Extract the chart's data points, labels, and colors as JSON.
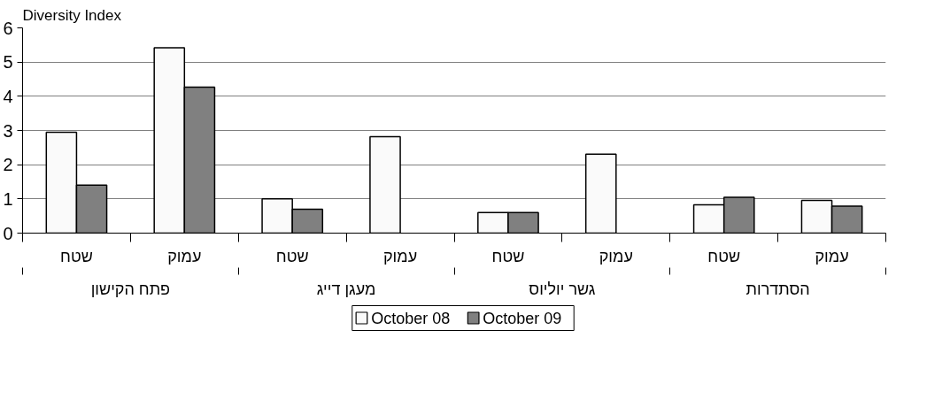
{
  "chart_data": {
    "type": "bar",
    "ylabel": "Diversity Index",
    "categories": [
      "שטח",
      "עמוק",
      "שטח",
      "עמוק",
      "שטח",
      "עמוק",
      "שטח",
      "עמוק"
    ],
    "annotations": [
      "פתח הקישון",
      "מעגן דייג",
      "גשר יוליוס",
      "הסתדרות"
    ],
    "series": [
      {
        "name": "October 08",
        "color": "#fafafa",
        "values": [
          2.95,
          5.42,
          1.0,
          2.82,
          0.6,
          2.31,
          0.83,
          0.96
        ]
      },
      {
        "name": "October 09",
        "color": "#808080",
        "values": [
          1.4,
          4.27,
          0.7,
          null,
          0.6,
          null,
          1.05,
          0.79
        ]
      }
    ],
    "ylim": [
      0,
      6
    ],
    "yticks": [
      0,
      1,
      2,
      3,
      4,
      5,
      6
    ],
    "grid": "y",
    "legend": "bottom"
  }
}
